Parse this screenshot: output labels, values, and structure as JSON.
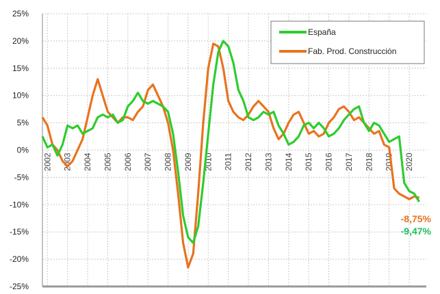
{
  "chart_data": {
    "type": "line",
    "x": [
      2001.75,
      2002,
      2002.25,
      2002.5,
      2002.75,
      2003,
      2003.25,
      2003.5,
      2003.75,
      2004,
      2004.25,
      2004.5,
      2004.75,
      2005,
      2005.25,
      2005.5,
      2005.75,
      2006,
      2006.25,
      2006.5,
      2006.75,
      2007,
      2007.25,
      2007.5,
      2007.75,
      2008,
      2008.25,
      2008.5,
      2008.75,
      2009,
      2009.25,
      2009.5,
      2009.75,
      2010,
      2010.25,
      2010.5,
      2010.75,
      2011,
      2011.25,
      2011.5,
      2011.75,
      2012,
      2012.25,
      2012.5,
      2012.75,
      2013,
      2013.25,
      2013.5,
      2013.75,
      2014,
      2014.25,
      2014.5,
      2014.75,
      2015,
      2015.25,
      2015.5,
      2015.75,
      2016,
      2016.25,
      2016.5,
      2016.75,
      2017,
      2017.25,
      2017.5,
      2017.75,
      2018,
      2018.25,
      2018.5,
      2018.75,
      2019,
      2019.25,
      2019.5,
      2019.75,
      2020,
      2020.25,
      2020.5
    ],
    "series": [
      {
        "name": "España",
        "color": "#2ecc2e",
        "values": [
          2.5,
          0.5,
          1,
          -1,
          1,
          4.5,
          4,
          4.5,
          3,
          3.5,
          4,
          6,
          6.5,
          6,
          6.5,
          5,
          5.5,
          8,
          9,
          10.5,
          9,
          8.5,
          9,
          8.5,
          8,
          7,
          3,
          -4,
          -12,
          -16,
          -17,
          -14,
          -6,
          3,
          12,
          18,
          20,
          19,
          16,
          11,
          9,
          6,
          5.5,
          6,
          7,
          6.5,
          7,
          4.5,
          3,
          1,
          1.5,
          2.5,
          4.5,
          5,
          4,
          5,
          4,
          2.5,
          3,
          4,
          5.5,
          6.5,
          7.5,
          8,
          5,
          3.5,
          5,
          4.5,
          3,
          1.5,
          2,
          2.5,
          -6,
          -7.5,
          -8,
          -9.47
        ]
      },
      {
        "name": "Fab. Prod. Construcción",
        "color": "#e8731e",
        "values": [
          6,
          4.5,
          1,
          0,
          -2,
          -3,
          -2,
          0,
          2,
          6,
          10,
          13,
          10,
          7,
          6,
          5,
          6,
          6,
          5.5,
          7,
          8,
          11,
          12,
          10,
          8,
          5,
          0,
          -8,
          -17,
          -21.5,
          -19,
          -8,
          5,
          15,
          19.5,
          19,
          15,
          9,
          7,
          6,
          5.5,
          6.5,
          8,
          9,
          8,
          7,
          4,
          2,
          3,
          5,
          6.5,
          7,
          5,
          3,
          3.5,
          2.5,
          3,
          5,
          6,
          7.5,
          8,
          7,
          5.5,
          6,
          5,
          4,
          3,
          3.5,
          1,
          0.5,
          -7,
          -8,
          -8.5,
          -9,
          -8.5,
          -8.75
        ]
      }
    ],
    "annotations": [
      {
        "text": "-8,75%",
        "color": "#e8731e"
      },
      {
        "text": "-9,47%",
        "color": "#1fbf5a"
      }
    ],
    "xlim": [
      2001.75,
      2020.85
    ],
    "xticks": [
      2002,
      2003,
      2004,
      2005,
      2006,
      2007,
      2008,
      2009,
      2010,
      2011,
      2012,
      2013,
      2014,
      2015,
      2016,
      2017,
      2018,
      2019,
      2020
    ],
    "ylim": [
      -25,
      25
    ],
    "yticks": [
      {
        "value": -25,
        "label": "-25%"
      },
      {
        "value": -20,
        "label": "-20%"
      },
      {
        "value": -15,
        "label": "-15%"
      },
      {
        "value": -10,
        "label": "-10%"
      },
      {
        "value": -5,
        "label": "-5%"
      },
      {
        "value": 0,
        "label": "0%"
      },
      {
        "value": 5,
        "label": "5%"
      },
      {
        "value": 10,
        "label": "10%"
      },
      {
        "value": 15,
        "label": "15%"
      },
      {
        "value": 20,
        "label": "20%"
      },
      {
        "value": 25,
        "label": "25%"
      }
    ],
    "grid": true,
    "legend": "upper right"
  }
}
